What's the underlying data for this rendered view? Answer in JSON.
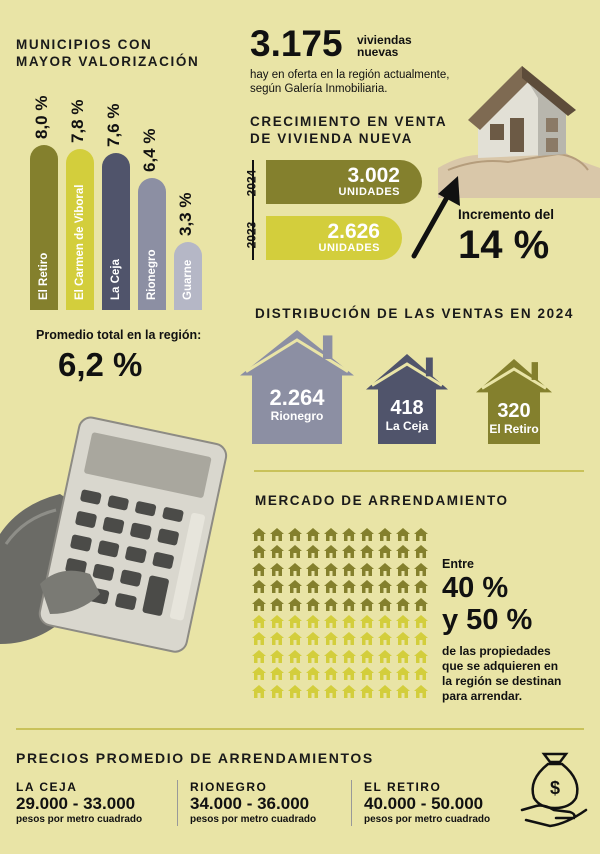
{
  "valorizacion": {
    "title_line1": "MUNICIPIOS CON",
    "title_line2": "MAYOR VALORIZACIÓN",
    "promedio_label": "Promedio total en la región:",
    "promedio_value": "6,2 %"
  },
  "oferta": {
    "number": "3.175",
    "unit_line1": "viviendas",
    "unit_line2": "nuevas",
    "desc_line1": "hay en oferta en la región actualmente,",
    "desc_line2": "según Galería Inmobiliaria."
  },
  "crecimiento": {
    "title_line1": "CRECIMIENTO EN VENTA",
    "title_line2": "DE VIVIENDA NUEVA",
    "year_2024": "2024",
    "value_2024": "3.002",
    "unit_2024": "UNIDADES",
    "year_2023": "2023",
    "value_2023": "2.626",
    "unit_2023": "UNIDADES",
    "increment_label": "Incremento del",
    "increment_value": "14 %"
  },
  "distribucion": {
    "title": "DISTRIBUCIÓN DE LAS VENTAS EN 2024",
    "items": [
      {
        "value": "2.264",
        "name": "Rionegro",
        "color": "#8c8fa3"
      },
      {
        "value": "418",
        "name": "La Ceja",
        "color": "#50546b"
      },
      {
        "value": "320",
        "name": "El Retiro",
        "color": "#84802d"
      }
    ]
  },
  "arrendamiento": {
    "title": "MERCADO DE ARRENDAMIENTO",
    "entre": "Entre",
    "pct1": "40 %",
    "pct2": "y 50 %",
    "desc_line1": "de las propiedades",
    "desc_line2": "que se adquieren en",
    "desc_line3": "la región se destinan",
    "desc_line4": "para arrendar.",
    "dark_color": "#84802d",
    "light_color": "#d3ce3c"
  },
  "precios": {
    "title": "PRECIOS PROMEDIO DE ARRENDAMIENTOS",
    "items": [
      {
        "city": "LA CEJA",
        "range": "29.000 - 33.000",
        "unit": "pesos por metro cuadrado",
        "color": "#50546b"
      },
      {
        "city": "RIONEGRO",
        "range": "34.000 - 36.000",
        "unit": "pesos por metro cuadrado",
        "color": "#8c8fa3"
      },
      {
        "city": "EL RETIRO",
        "range": "40.000 - 50.000",
        "unit": "pesos por metro cuadrado",
        "color": "#84802d"
      }
    ]
  },
  "chart_data": [
    {
      "type": "bar",
      "title": "MUNICIPIOS CON MAYOR VALORIZACIÓN",
      "categories": [
        "El Retiro",
        "El Carmen de Viboral",
        "La Ceja",
        "Rionegro",
        "Guarne"
      ],
      "values": [
        8.0,
        7.8,
        7.6,
        6.4,
        3.3
      ],
      "labels": [
        "8,0 %",
        "7,8 %",
        "7,6 %",
        "6,4 %",
        "3,3 %"
      ],
      "colors": [
        "#84802d",
        "#d3ce3c",
        "#50546b",
        "#8c8fa3",
        "#b5b7c6"
      ]
    },
    {
      "type": "bar",
      "title": "CRECIMIENTO EN VENTA DE VIVIENDA NUEVA",
      "categories": [
        "2024",
        "2023"
      ],
      "values": [
        3002,
        2626
      ],
      "colors": [
        "#84802d",
        "#d3ce3c"
      ]
    }
  ]
}
